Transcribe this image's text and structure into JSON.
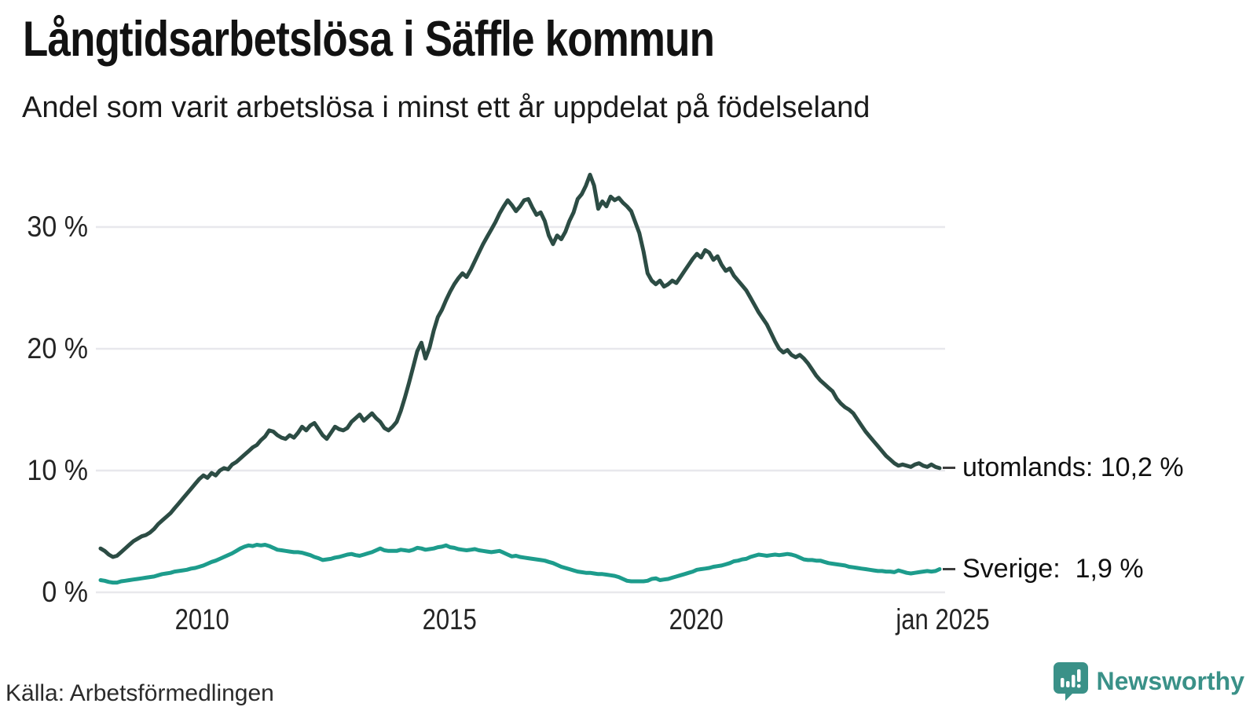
{
  "header": {
    "title": "Långtidsarbetslösa i Säffle kommun",
    "subtitle": "Andel som varit arbetslösa i minst ett år uppdelat på födelseland"
  },
  "footer": {
    "source": "Källa: Arbetsförmedlingen",
    "brand": "Newsworthy",
    "brand_color": "#3a9188",
    "brand_icon": "speech-bubble-bar-chart-icon"
  },
  "chart_data": {
    "type": "line",
    "frequency": "monthly",
    "x_start": "jan 2008",
    "x_end": "jan 2025",
    "title": "Långtidsarbetslösa i Säffle kommun",
    "subtitle": "Andel som varit arbetslösa i minst ett år uppdelat på födelseland",
    "ylabel": "",
    "xlabel": "",
    "ylim": [
      0,
      36
    ],
    "grid": "horizontal",
    "legend_position": "right-end-labels",
    "background": "#ffffff",
    "gridline_color": "#e8e8ec",
    "y_ticks": [
      {
        "label": "0 %",
        "value": 0
      },
      {
        "label": "10 %",
        "value": 10
      },
      {
        "label": "20 %",
        "value": 20
      },
      {
        "label": "30 %",
        "value": 30
      }
    ],
    "x_ticks": [
      {
        "label": "2010",
        "year": 2010
      },
      {
        "label": "2015",
        "year": 2015
      },
      {
        "label": "2020",
        "year": 2020
      },
      {
        "label": "jan 2025",
        "year": 2025
      }
    ],
    "series": [
      {
        "name": "utomlands",
        "end_label": "utomlands: 10,2 %",
        "end_value": 10.2,
        "color": "#2c4c44",
        "stroke_width": 5,
        "values": [
          3.6,
          3.4,
          3.1,
          2.9,
          3.0,
          3.3,
          3.6,
          3.9,
          4.2,
          4.4,
          4.6,
          4.7,
          4.9,
          5.2,
          5.6,
          5.9,
          6.2,
          6.5,
          6.9,
          7.3,
          7.7,
          8.1,
          8.5,
          8.9,
          9.3,
          9.6,
          9.4,
          9.8,
          9.6,
          10.0,
          10.2,
          10.1,
          10.5,
          10.7,
          11.0,
          11.3,
          11.6,
          11.9,
          12.1,
          12.5,
          12.8,
          13.3,
          13.2,
          12.9,
          12.7,
          12.6,
          12.9,
          12.7,
          13.1,
          13.6,
          13.3,
          13.7,
          13.9,
          13.4,
          12.9,
          12.6,
          13.1,
          13.6,
          13.4,
          13.3,
          13.5,
          14.0,
          14.3,
          14.6,
          14.1,
          14.4,
          14.7,
          14.3,
          14.0,
          13.5,
          13.3,
          13.6,
          14.0,
          14.9,
          16.0,
          17.2,
          18.5,
          19.8,
          20.5,
          19.2,
          20.1,
          21.5,
          22.6,
          23.2,
          24.0,
          24.7,
          25.3,
          25.8,
          26.2,
          25.9,
          26.5,
          27.2,
          27.9,
          28.6,
          29.2,
          29.8,
          30.4,
          31.1,
          31.7,
          32.2,
          31.8,
          31.3,
          31.7,
          32.2,
          32.3,
          31.6,
          31.0,
          31.2,
          30.5,
          29.3,
          28.6,
          29.3,
          29.0,
          29.6,
          30.5,
          31.2,
          32.3,
          32.7,
          33.4,
          34.3,
          33.4,
          31.5,
          32.1,
          31.7,
          32.5,
          32.2,
          32.4,
          32.0,
          31.7,
          31.3,
          30.4,
          29.5,
          28.0,
          26.2,
          25.6,
          25.3,
          25.6,
          25.1,
          25.3,
          25.6,
          25.4,
          25.9,
          26.4,
          26.9,
          27.4,
          27.8,
          27.5,
          28.1,
          27.9,
          27.3,
          27.6,
          26.9,
          26.4,
          26.6,
          26.0,
          25.6,
          25.2,
          24.8,
          24.2,
          23.6,
          23.0,
          22.5,
          22.0,
          21.3,
          20.6,
          20.0,
          19.7,
          19.9,
          19.5,
          19.3,
          19.5,
          19.2,
          18.8,
          18.3,
          17.8,
          17.4,
          17.1,
          16.8,
          16.5,
          15.9,
          15.5,
          15.2,
          15.0,
          14.7,
          14.2,
          13.7,
          13.2,
          12.8,
          12.4,
          12.0,
          11.6,
          11.2,
          10.9,
          10.6,
          10.4,
          10.5,
          10.4,
          10.3,
          10.5,
          10.6,
          10.4,
          10.3,
          10.5,
          10.3,
          10.2
        ]
      },
      {
        "name": "Sverige",
        "end_label": "Sverige:  1,9 %",
        "end_value": 1.9,
        "color": "#1d9c8c",
        "stroke_width": 5,
        "values": [
          1.0,
          0.95,
          0.85,
          0.8,
          0.8,
          0.9,
          0.95,
          1.0,
          1.05,
          1.1,
          1.15,
          1.2,
          1.25,
          1.3,
          1.4,
          1.5,
          1.55,
          1.6,
          1.7,
          1.75,
          1.8,
          1.85,
          1.95,
          2.0,
          2.1,
          2.2,
          2.35,
          2.5,
          2.6,
          2.75,
          2.9,
          3.05,
          3.2,
          3.4,
          3.6,
          3.75,
          3.85,
          3.8,
          3.9,
          3.85,
          3.9,
          3.8,
          3.65,
          3.5,
          3.45,
          3.4,
          3.35,
          3.3,
          3.3,
          3.25,
          3.15,
          3.05,
          2.9,
          2.8,
          2.65,
          2.7,
          2.75,
          2.85,
          2.9,
          3.0,
          3.1,
          3.15,
          3.05,
          3.0,
          3.1,
          3.2,
          3.3,
          3.45,
          3.6,
          3.45,
          3.4,
          3.4,
          3.4,
          3.5,
          3.45,
          3.4,
          3.5,
          3.65,
          3.6,
          3.5,
          3.55,
          3.6,
          3.7,
          3.75,
          3.85,
          3.7,
          3.65,
          3.55,
          3.5,
          3.45,
          3.5,
          3.55,
          3.45,
          3.4,
          3.35,
          3.3,
          3.35,
          3.4,
          3.25,
          3.1,
          2.95,
          3.0,
          2.9,
          2.85,
          2.8,
          2.75,
          2.7,
          2.65,
          2.6,
          2.5,
          2.4,
          2.25,
          2.1,
          2.0,
          1.9,
          1.8,
          1.7,
          1.65,
          1.6,
          1.6,
          1.55,
          1.5,
          1.5,
          1.45,
          1.4,
          1.35,
          1.25,
          1.1,
          0.95,
          0.9,
          0.9,
          0.9,
          0.9,
          0.95,
          1.1,
          1.15,
          1.0,
          1.05,
          1.1,
          1.2,
          1.3,
          1.4,
          1.5,
          1.6,
          1.7,
          1.85,
          1.9,
          1.95,
          2.0,
          2.1,
          2.15,
          2.2,
          2.3,
          2.4,
          2.55,
          2.6,
          2.7,
          2.75,
          2.9,
          3.0,
          3.1,
          3.05,
          3.0,
          3.05,
          3.1,
          3.05,
          3.1,
          3.15,
          3.1,
          3.0,
          2.85,
          2.7,
          2.65,
          2.65,
          2.6,
          2.6,
          2.5,
          2.4,
          2.35,
          2.3,
          2.25,
          2.2,
          2.1,
          2.05,
          2.0,
          1.95,
          1.9,
          1.85,
          1.8,
          1.75,
          1.75,
          1.7,
          1.7,
          1.65,
          1.8,
          1.7,
          1.6,
          1.55,
          1.6,
          1.65,
          1.7,
          1.75,
          1.7,
          1.75,
          1.9
        ]
      }
    ]
  }
}
